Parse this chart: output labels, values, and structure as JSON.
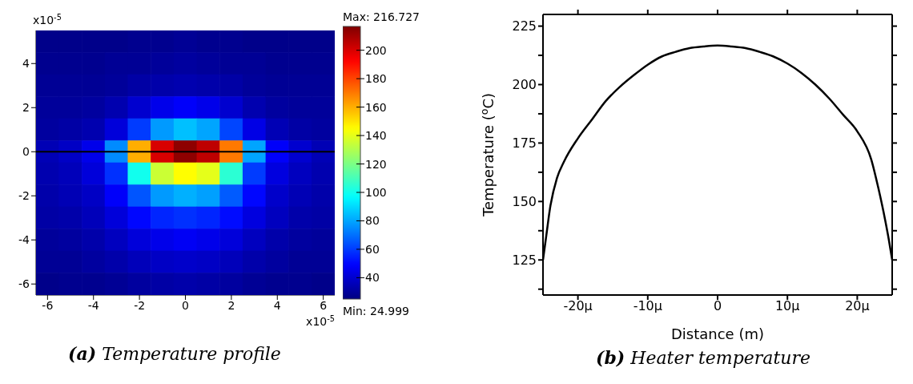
{
  "chart_data": [
    {
      "type": "heatmap",
      "title": "(a) Temperature profile",
      "categories": [
        "-6",
        null,
        "-4",
        null,
        "-2",
        null,
        "0",
        null,
        "2",
        null,
        "4",
        null,
        "6"
      ],
      "y_categories": [
        null,
        "4",
        null,
        "2",
        null,
        "0",
        null,
        "-2",
        null,
        "-4",
        null,
        "-6"
      ],
      "cells": [
        [
          27,
          27,
          27,
          27,
          28,
          28,
          29,
          28,
          28,
          27,
          27,
          27,
          27
        ],
        [
          28,
          28,
          28,
          29,
          29,
          30,
          31,
          30,
          29,
          29,
          28,
          28,
          28
        ],
        [
          29,
          29,
          29,
          30,
          32,
          33,
          34,
          33,
          32,
          30,
          29,
          29,
          29
        ],
        [
          30,
          30,
          31,
          34,
          40,
          45,
          48,
          45,
          40,
          34,
          31,
          30,
          30
        ],
        [
          31,
          32,
          34,
          42,
          60,
          78,
          85,
          80,
          62,
          44,
          35,
          32,
          31
        ],
        [
          35,
          38,
          45,
          75,
          160,
          200,
          214,
          205,
          170,
          80,
          48,
          40,
          35
        ],
        [
          34,
          36,
          42,
          58,
          100,
          135,
          145,
          140,
          105,
          60,
          43,
          37,
          34
        ],
        [
          33,
          35,
          38,
          48,
          65,
          78,
          82,
          79,
          66,
          50,
          39,
          35,
          33
        ],
        [
          32,
          33,
          36,
          42,
          50,
          56,
          58,
          56,
          51,
          43,
          37,
          33,
          32
        ],
        [
          30,
          31,
          33,
          37,
          42,
          45,
          47,
          45,
          42,
          37,
          33,
          31,
          30
        ],
        [
          29,
          29,
          31,
          33,
          36,
          38,
          39,
          38,
          36,
          33,
          31,
          29,
          29
        ],
        [
          27,
          28,
          28,
          29,
          31,
          32,
          33,
          32,
          31,
          29,
          28,
          28,
          27
        ]
      ],
      "clim": [
        24.999,
        216.727
      ],
      "cticks": [
        40,
        60,
        80,
        100,
        120,
        140,
        160,
        180,
        200
      ],
      "ref_lines": [
        {
          "axis": "y",
          "value": "0",
          "color": "#000000"
        }
      ],
      "annotations": [
        "x10$^{-5}$",
        "x10$^{-5}$",
        "Max: 216.727",
        "Min: 24.999"
      ]
    },
    {
      "type": "line",
      "title": "(b) Heater temperature",
      "xlabel": "Distance (m)",
      "ylabel": "Temperature ($^{o}$C)",
      "x": [
        -25,
        -24.5,
        -24,
        -23,
        -22,
        -20,
        -18,
        -16,
        -14,
        -12,
        -10,
        -8,
        -6,
        -4,
        -2,
        0,
        2,
        4,
        6,
        8,
        10,
        12,
        14,
        16,
        18,
        20,
        22,
        23,
        24,
        24.5,
        25
      ],
      "series": [
        {
          "color": "#000000",
          "values": [
            125,
            136,
            147,
            160,
            167,
            177,
            185,
            193,
            199,
            204,
            208.5,
            212,
            214,
            215.6,
            216.3,
            216.7,
            216.3,
            215.6,
            214,
            212,
            209,
            205,
            200,
            194,
            187,
            180,
            168,
            156,
            142,
            134,
            125
          ]
        }
      ],
      "xlim": [
        -25,
        25
      ],
      "xticks": [
        {
          "value": -20,
          "label": "-20μ"
        },
        {
          "value": -10,
          "label": "-10μ"
        },
        0,
        {
          "value": 10,
          "label": "10μ"
        },
        {
          "value": 20,
          "label": "20μ"
        }
      ],
      "ylim": [
        110,
        230
      ],
      "yticks": [
        {
          "value": 112.5,
          "label": null
        },
        125,
        {
          "value": 137.5,
          "label": null
        },
        150,
        {
          "value": 162.5,
          "label": null
        },
        175,
        {
          "value": 187.5,
          "label": null
        },
        200,
        {
          "value": 212.5,
          "label": null
        },
        225
      ]
    }
  ]
}
